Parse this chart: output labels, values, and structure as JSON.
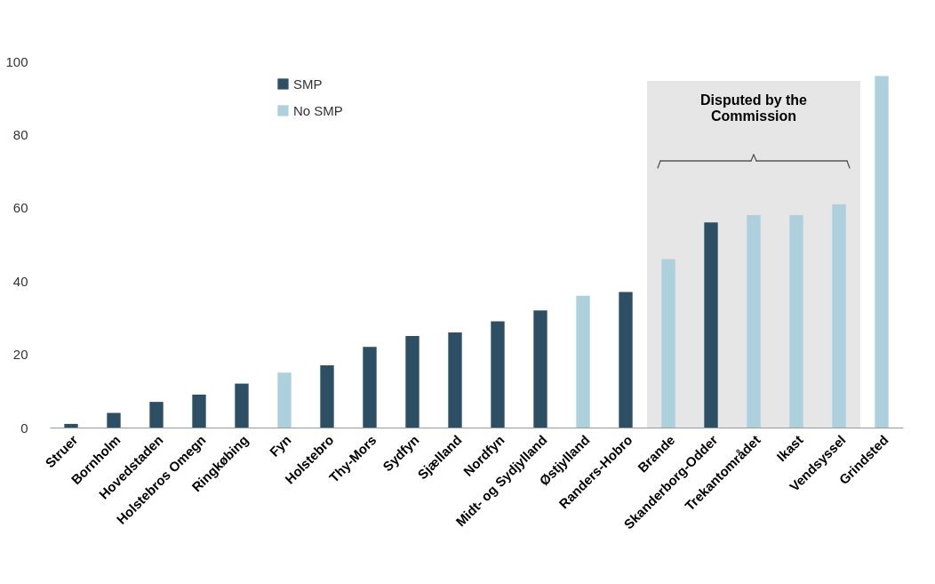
{
  "chart_data": {
    "type": "bar",
    "categories": [
      "Struer",
      "Bornholm",
      "Hovedstaden",
      "Holstebros Omegn",
      "Ringkøbing",
      "Fyn",
      "Holstebro",
      "Thy-Mors",
      "Sydfyn",
      "Sjælland",
      "Nordfyn",
      "Midt- og Sydjylland",
      "Østjylland",
      "Randers-Hobro",
      "Brande",
      "Skanderborg-Odder",
      "Trekantområdet",
      "Ikast",
      "Vendsyssel",
      "Grindsted"
    ],
    "series": [
      {
        "name": "SMP",
        "color": "#2d4e63",
        "values": [
          1,
          4,
          7,
          9,
          12,
          null,
          17,
          22,
          25,
          26,
          29,
          32,
          null,
          37,
          null,
          56,
          null,
          null,
          null,
          null
        ]
      },
      {
        "name": "No SMP",
        "color": "#aed0dc",
        "values": [
          null,
          null,
          null,
          null,
          null,
          15,
          null,
          null,
          null,
          null,
          null,
          null,
          36,
          null,
          46,
          null,
          58,
          58,
          61,
          96
        ]
      }
    ],
    "ylim": [
      0,
      100
    ],
    "yticks": [
      0,
      20,
      40,
      60,
      80,
      100
    ],
    "bands": [
      {
        "axis": "x",
        "from": "Brande",
        "to": "Vendsyssel",
        "label": "Disputed by the Commission",
        "color": "#e6e6e6"
      }
    ],
    "grid": false,
    "legend": "top left"
  }
}
